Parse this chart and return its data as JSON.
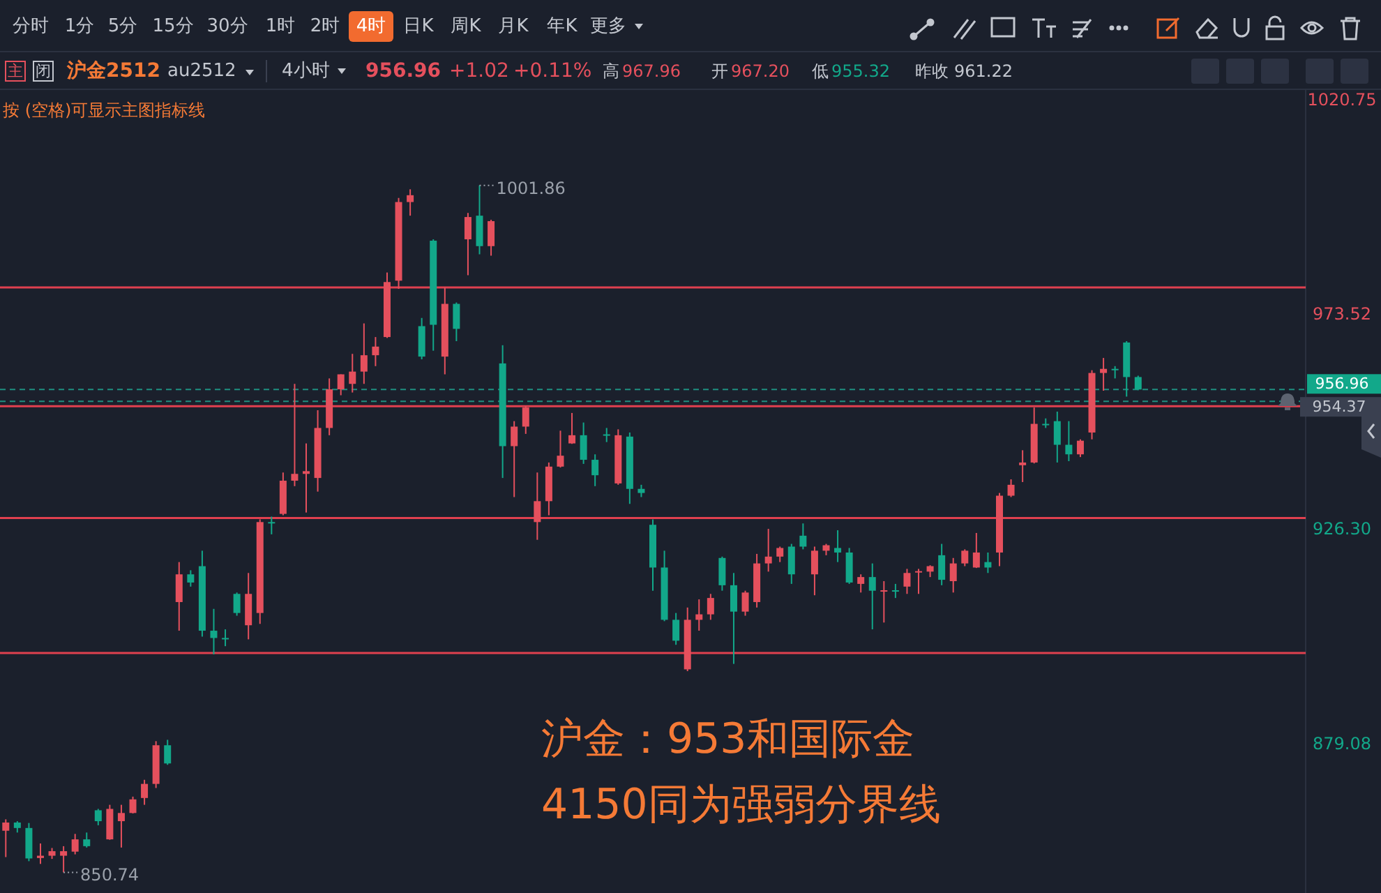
{
  "chart_data": {
    "type": "candlestick",
    "title": "沪金2512",
    "subtitle": "au2512",
    "annotations": [
      "分时",
      "1分",
      "5分",
      "15分",
      "30分",
      "1时",
      "2时",
      "4时",
      "日K",
      "周K",
      "月K",
      "年K",
      "更多",
      "主",
      "闭",
      "4小时",
      "956.96",
      "+1.02",
      "+0.11%",
      "高",
      "967.96",
      "开",
      "967.20",
      "低",
      "955.32",
      "昨收",
      "961.22",
      "按 (空格)可显示主图指标线",
      "沪金：953和国际金",
      "4150同为强弱分界线",
      "1001.86",
      "850.74"
    ],
    "categories": [
      null,
      null,
      null,
      null,
      null,
      null,
      null,
      null,
      null,
      null,
      null,
      null,
      null,
      null,
      null,
      null,
      null,
      null,
      null,
      null,
      null,
      null,
      null,
      null,
      null,
      null,
      null,
      null,
      null,
      null,
      null,
      null,
      null,
      null,
      null,
      null,
      null,
      null,
      null,
      null,
      null,
      null,
      null,
      null,
      null,
      null,
      null,
      null,
      null,
      null,
      null,
      null,
      null,
      null,
      null,
      null,
      null,
      null,
      null,
      null,
      null,
      null,
      null,
      null,
      null,
      null,
      null,
      null,
      null,
      null,
      null,
      null,
      null,
      null,
      null,
      null,
      null,
      null,
      null,
      null,
      null,
      null,
      null,
      null,
      null,
      null,
      null,
      null,
      null,
      null,
      null,
      null,
      null,
      null,
      null,
      null,
      null,
      null,
      null,
      null,
      null,
      null,
      null,
      null,
      null,
      null,
      null,
      null,
      null,
      null,
      null,
      null,
      null
    ],
    "ohlc": [
      [
        859.9,
        862.4,
        854.1,
        861.7
      ],
      [
        861.7,
        862.0,
        859.5,
        860.5
      ],
      [
        860.5,
        861.6,
        853.2,
        853.8
      ],
      [
        853.9,
        857.1,
        852.6,
        854.4
      ],
      [
        854.4,
        856.1,
        853.7,
        855.4
      ],
      [
        854.4,
        856.5,
        850.74,
        855.4
      ],
      [
        855.3,
        859.2,
        854.7,
        858.0
      ],
      [
        858.0,
        859.5,
        856.2,
        856.5
      ],
      [
        864.4,
        864.7,
        861.1,
        862.0
      ],
      [
        858.0,
        865.6,
        857.9,
        864.7
      ],
      [
        862.0,
        865.6,
        856.2,
        863.8
      ],
      [
        863.8,
        867.4,
        863.7,
        866.8
      ],
      [
        867.1,
        871.1,
        865.6,
        870.2
      ],
      [
        870.2,
        879.6,
        869.3,
        878.7
      ],
      [
        878.7,
        879.9,
        874.4,
        874.7
      ],
      [
        910.2,
        919.0,
        903.9,
        916.3
      ],
      [
        916.3,
        917.2,
        913.6,
        914.5
      ],
      [
        918.1,
        921.5,
        902.6,
        903.9
      ],
      [
        903.9,
        908.7,
        898.7,
        902.3
      ],
      [
        902.3,
        904.2,
        900.5,
        902.0
      ],
      [
        912.0,
        912.3,
        907.2,
        907.8
      ],
      [
        905.1,
        916.6,
        902.0,
        912.0
      ],
      [
        907.8,
        928.4,
        905.4,
        927.8
      ],
      [
        927.8,
        929.0,
        925.1,
        927.5
      ],
      [
        929.6,
        938.7,
        929.3,
        936.9
      ],
      [
        936.9,
        958.2,
        935.7,
        938.4
      ],
      [
        938.4,
        945.1,
        929.9,
        939.0
      ],
      [
        937.5,
        952.4,
        934.5,
        948.5
      ],
      [
        948.5,
        959.4,
        946.9,
        957.0
      ],
      [
        957.0,
        960.3,
        955.7,
        960.3
      ],
      [
        958.2,
        964.8,
        956.3,
        960.9
      ],
      [
        960.9,
        971.5,
        958.2,
        964.5
      ],
      [
        964.5,
        968.5,
        962.1,
        966.4
      ],
      [
        968.5,
        982.7,
        968.3,
        980.6
      ],
      [
        980.9,
        999.1,
        979.1,
        998.2
      ],
      [
        998.2,
        1001.0,
        995.2,
        999.7
      ],
      [
        970.9,
        972.7,
        963.6,
        964.2
      ],
      [
        989.7,
        990.0,
        965.5,
        971.2
      ],
      [
        964.2,
        979.4,
        960.3,
        975.8
      ],
      [
        975.8,
        976.1,
        967.6,
        970.3
      ],
      [
        990.0,
        995.8,
        982.1,
        994.9
      ],
      [
        995.2,
        1001.86,
        986.7,
        988.5
      ],
      [
        988.5,
        994.3,
        986.4,
        994.0
      ],
      [
        962.7,
        966.7,
        937.5,
        944.5
      ],
      [
        944.5,
        950.0,
        933.3,
        948.8
      ],
      [
        948.8,
        953.3,
        947.2,
        953.0
      ],
      [
        927.8,
        938.7,
        923.9,
        932.4
      ],
      [
        932.4,
        940.9,
        929.3,
        940.0
      ],
      [
        940.0,
        947.9,
        939.8,
        942.4
      ],
      [
        945.1,
        951.8,
        945.0,
        946.9
      ],
      [
        946.9,
        949.7,
        940.6,
        941.5
      ],
      [
        941.5,
        942.7,
        935.7,
        938.1
      ],
      [
        947.1,
        948.5,
        945.4,
        946.8
      ],
      [
        936.3,
        948.2,
        936.0,
        946.9
      ],
      [
        946.6,
        947.5,
        931.8,
        935.1
      ],
      [
        935.1,
        936.0,
        933.3,
        934.2
      ],
      [
        927.2,
        928.4,
        912.7,
        917.8
      ],
      [
        917.8,
        921.5,
        906.0,
        906.3
      ],
      [
        906.3,
        907.8,
        900.8,
        901.7
      ],
      [
        895.4,
        909.0,
        895.0,
        906.3
      ],
      [
        906.3,
        910.8,
        903.9,
        907.5
      ],
      [
        907.5,
        912.0,
        906.3,
        911.1
      ],
      [
        919.9,
        920.2,
        912.7,
        913.9
      ],
      [
        913.9,
        916.6,
        896.6,
        908.1
      ],
      [
        908.1,
        912.7,
        907.2,
        912.3
      ],
      [
        910.2,
        920.8,
        909.0,
        918.7
      ],
      [
        918.7,
        926.3,
        916.9,
        920.2
      ],
      [
        920.2,
        922.4,
        919.0,
        922.1
      ],
      [
        922.4,
        923.0,
        914.2,
        916.3
      ],
      [
        924.8,
        927.5,
        921.8,
        922.4
      ],
      [
        916.3,
        922.4,
        911.7,
        921.5
      ],
      [
        921.5,
        923.0,
        920.5,
        922.7
      ],
      [
        922.1,
        926.0,
        919.0,
        921.1
      ],
      [
        921.1,
        922.1,
        914.2,
        914.5
      ],
      [
        914.2,
        916.3,
        912.3,
        915.7
      ],
      [
        915.7,
        918.7,
        904.2,
        912.7
      ],
      [
        912.5,
        914.8,
        905.7,
        912.8
      ],
      [
        912.8,
        914.2,
        911.1,
        912.5
      ],
      [
        913.6,
        917.5,
        912.0,
        916.6
      ],
      [
        916.7,
        917.5,
        912.0,
        917.0
      ],
      [
        916.9,
        918.3,
        915.7,
        918.1
      ],
      [
        920.5,
        923.0,
        913.9,
        915.1
      ],
      [
        914.8,
        919.9,
        912.3,
        918.7
      ],
      [
        918.7,
        921.8,
        918.1,
        921.5
      ],
      [
        917.8,
        925.4,
        917.7,
        921.1
      ],
      [
        919.0,
        921.1,
        916.6,
        917.8
      ],
      [
        921.1,
        934.2,
        918.1,
        933.6
      ],
      [
        933.6,
        937.2,
        933.3,
        936.0
      ],
      [
        940.3,
        943.6,
        936.6,
        940.9
      ],
      [
        940.9,
        953.0,
        940.7,
        949.4
      ],
      [
        949.4,
        950.6,
        948.5,
        949.1
      ],
      [
        950.0,
        952.1,
        940.9,
        944.8
      ],
      [
        944.8,
        950.0,
        941.2,
        942.7
      ],
      [
        942.7,
        946.0,
        942.1,
        945.7
      ],
      [
        947.5,
        961.2,
        946.0,
        960.6
      ],
      [
        960.6,
        963.9,
        956.7,
        961.5
      ],
      [
        961.5,
        962.1,
        959.4,
        961.2
      ],
      [
        967.3,
        967.6,
        955.4,
        959.7
      ],
      [
        959.7,
        960.0,
        956.8,
        956.96
      ],
      null,
      null,
      null,
      null,
      null,
      null,
      null,
      null,
      null,
      null,
      null,
      null,
      null,
      null
    ],
    "ylim": [
      846.2,
      1023.0
    ],
    "yticks": [
      {
        "value": 879.08,
        "label": "879.08"
      },
      {
        "value": 926.3,
        "label": "926.30"
      },
      {
        "value": 973.52,
        "label": "973.52"
      },
      {
        "value": 1020.75,
        "label": "1020.75"
      }
    ],
    "ref_lines": [
      {
        "axis": "y",
        "value": 979.4,
        "color": "#e0404f",
        "line_style": "solid"
      },
      {
        "axis": "y",
        "value": 953.3,
        "color": "#e0404f",
        "line_style": "solid"
      },
      {
        "axis": "y",
        "value": 928.7,
        "color": "#e0404f",
        "line_style": "solid"
      },
      {
        "axis": "y",
        "value": 899.0,
        "color": "#e0404f",
        "line_style": "solid"
      },
      {
        "axis": "y",
        "value": 956.96,
        "label": "956.96",
        "color": "#1f8f80",
        "line_style": "dashed"
      },
      {
        "axis": "y",
        "value": 954.37,
        "label": "954.37",
        "color": "#1f8f80",
        "line_style": "dashed"
      }
    ]
  }
}
